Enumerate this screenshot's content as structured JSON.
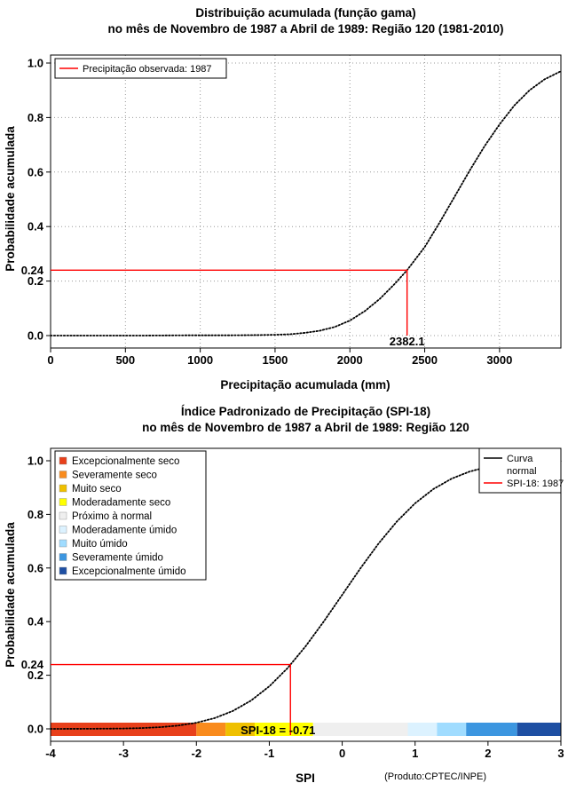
{
  "chart_data": [
    {
      "type": "line",
      "title": "Distribuição acumulada (função gama)",
      "subtitle": "no mês de Novembro de 1987 a Abril de 1989: Região 120 (1981-2010)",
      "xlabel": "Precipitação acumulada (mm)",
      "ylabel": "Probabilidade acumulada",
      "xlim": [
        0,
        3410
      ],
      "ylim": [
        -0.04,
        1.04
      ],
      "grid": true,
      "legend_position": "top-left",
      "xticks": [
        {
          "v": 0,
          "label": "0"
        },
        {
          "v": 500,
          "label": "500"
        },
        {
          "v": 1000,
          "label": "1000"
        },
        {
          "v": 1500,
          "label": "1500"
        },
        {
          "v": 2000,
          "label": "2000"
        },
        {
          "v": 2500,
          "label": "2500"
        },
        {
          "v": 3000,
          "label": "3000"
        }
      ],
      "yticks": [
        {
          "v": 0.0,
          "label": "0.0"
        },
        {
          "v": 0.2,
          "label": "0.2"
        },
        {
          "v": 0.4,
          "label": "0.4"
        },
        {
          "v": 0.6,
          "label": "0.6"
        },
        {
          "v": 0.8,
          "label": "0.8"
        },
        {
          "v": 1.0,
          "label": "1.0"
        }
      ],
      "series": [
        {
          "name": "curva-gama-acumulada",
          "color": "#000000",
          "x": [
            0,
            300,
            600,
            900,
            1200,
            1400,
            1500,
            1600,
            1700,
            1800,
            1900,
            2000,
            2100,
            2200,
            2300,
            2382,
            2500,
            2600,
            2700,
            2800,
            2900,
            3000,
            3100,
            3200,
            3300,
            3410
          ],
          "y": [
            0,
            0,
            0,
            0.001,
            0.001,
            0.002,
            0.003,
            0.005,
            0.01,
            0.018,
            0.032,
            0.055,
            0.09,
            0.135,
            0.19,
            0.24,
            0.325,
            0.415,
            0.51,
            0.605,
            0.695,
            0.775,
            0.845,
            0.9,
            0.94,
            0.97
          ]
        }
      ],
      "marker": {
        "x": 2382.1,
        "y": 0.24,
        "color": "#FF0000",
        "x_label": "2382.1",
        "y_label": "0.24"
      },
      "legend": {
        "items": [
          {
            "lines": [
              "Precipitação observada: 1987"
            ],
            "color": "#FF0000"
          }
        ]
      }
    },
    {
      "type": "line",
      "title": "Índice Padronizado de Precipitação (SPI-18)",
      "subtitle": "no mês de Novembro de 1987 a Abril de 1989: Região 120",
      "xlabel": "SPI",
      "ylabel": "Probabilidade acumulada",
      "xlim": [
        -4,
        3
      ],
      "ylim": [
        -0.04,
        1.04
      ],
      "grid": false,
      "legend_position": "top-right",
      "credit": "(Produto:CPTEC/INPE)",
      "xticks": [
        {
          "v": -4,
          "label": "-4"
        },
        {
          "v": -3,
          "label": "-3"
        },
        {
          "v": -2,
          "label": "-2"
        },
        {
          "v": -1,
          "label": "-1"
        },
        {
          "v": 0,
          "label": "0"
        },
        {
          "v": 1,
          "label": "1"
        },
        {
          "v": 2,
          "label": "2"
        },
        {
          "v": 3,
          "label": "3"
        }
      ],
      "yticks": [
        {
          "v": 0.0,
          "label": "0.0"
        },
        {
          "v": 0.2,
          "label": "0.2"
        },
        {
          "v": 0.4,
          "label": "0.4"
        },
        {
          "v": 0.6,
          "label": "0.6"
        },
        {
          "v": 0.8,
          "label": "0.8"
        },
        {
          "v": 1.0,
          "label": "1.0"
        }
      ],
      "series": [
        {
          "name": "curva-normal",
          "color": "#000000",
          "x": [
            -4,
            -3.5,
            -3,
            -2.75,
            -2.5,
            -2.25,
            -2,
            -1.75,
            -1.5,
            -1.25,
            -1,
            -0.75,
            -0.5,
            -0.25,
            0,
            0.25,
            0.5,
            0.75,
            1,
            1.25,
            1.5,
            1.75,
            2,
            2.25,
            2.5,
            2.75,
            3
          ],
          "y": [
            0.0,
            0.0002,
            0.0013,
            0.003,
            0.0062,
            0.0122,
            0.0228,
            0.0401,
            0.0668,
            0.1056,
            0.1587,
            0.2266,
            0.3085,
            0.4013,
            0.5,
            0.5987,
            0.6915,
            0.7734,
            0.8413,
            0.8944,
            0.9332,
            0.9599,
            0.9772,
            0.9878,
            0.9938,
            0.997,
            0.9987
          ]
        }
      ],
      "marker": {
        "x": -0.71,
        "y": 0.24,
        "color": "#FF0000",
        "y_label": "0.24",
        "annotation": "SPI-18 = -0.71"
      },
      "legend": {
        "items": [
          {
            "lines": [
              "Curva",
              "normal"
            ],
            "color": "#000000"
          },
          {
            "lines": [
              "SPI-18: 1987"
            ],
            "color": "#FF0000"
          }
        ]
      },
      "categories": [
        {
          "label": "Excepcionalmente seco",
          "color": "#E8401B"
        },
        {
          "label": "Severamente seco",
          "color": "#F98B1D"
        },
        {
          "label": "Muito seco",
          "color": "#EFC000"
        },
        {
          "label": "Moderadamente seco",
          "color": "#FFFF00"
        },
        {
          "label": "Próximo à normal",
          "color": "#EFEFEF"
        },
        {
          "label": "Moderadamente úmido",
          "color": "#DCF2FF"
        },
        {
          "label": "Muito úmido",
          "color": "#A0DCFF"
        },
        {
          "label": "Severamente úmido",
          "color": "#3C96E0"
        },
        {
          "label": "Excepcionalmente úmido",
          "color": "#1E4FA3"
        }
      ],
      "category_bar": [
        {
          "from": -4.0,
          "to": -2.0,
          "color": "#E8401B"
        },
        {
          "from": -2.0,
          "to": -1.6,
          "color": "#F98B1D"
        },
        {
          "from": -1.6,
          "to": -1.2,
          "color": "#EFC000"
        },
        {
          "from": -1.2,
          "to": -0.4,
          "color": "#FFFF00"
        },
        {
          "from": -0.4,
          "to": 0.9,
          "color": "#EFEFEF"
        },
        {
          "from": 0.9,
          "to": 1.3,
          "color": "#DCF2FF"
        },
        {
          "from": 1.3,
          "to": 1.7,
          "color": "#A0DCFF"
        },
        {
          "from": 1.7,
          "to": 2.4,
          "color": "#3C96E0"
        },
        {
          "from": 2.4,
          "to": 3.0,
          "color": "#1E4FA3"
        }
      ]
    }
  ]
}
